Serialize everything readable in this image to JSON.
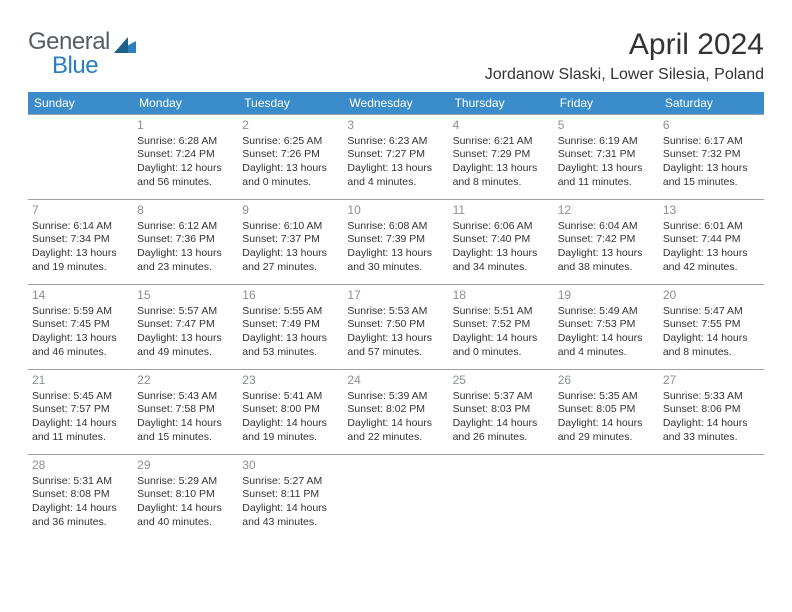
{
  "logo": {
    "text1": "General",
    "text2": "Blue"
  },
  "header": {
    "month_title": "April 2024",
    "location": "Jordanow Slaski, Lower Silesia, Poland"
  },
  "style": {
    "header_bg": "#3b8ccb",
    "header_fg": "#ffffff",
    "body_bg": "#ffffff",
    "border_color": "#9aa0a6",
    "daynum_color": "#8a8f96",
    "text_color": "#333333",
    "logo_gray": "#555c66",
    "logo_blue": "#2a7fbf",
    "month_fontsize": 30,
    "location_fontsize": 16,
    "th_fontsize": 12,
    "cell_fontsize": 10.5
  },
  "day_headers": [
    "Sunday",
    "Monday",
    "Tuesday",
    "Wednesday",
    "Thursday",
    "Friday",
    "Saturday"
  ],
  "weeks": [
    [
      {
        "num": "",
        "lines": []
      },
      {
        "num": "1",
        "lines": [
          "Sunrise: 6:28 AM",
          "Sunset: 7:24 PM",
          "Daylight: 12 hours",
          "and 56 minutes."
        ]
      },
      {
        "num": "2",
        "lines": [
          "Sunrise: 6:25 AM",
          "Sunset: 7:26 PM",
          "Daylight: 13 hours",
          "and 0 minutes."
        ]
      },
      {
        "num": "3",
        "lines": [
          "Sunrise: 6:23 AM",
          "Sunset: 7:27 PM",
          "Daylight: 13 hours",
          "and 4 minutes."
        ]
      },
      {
        "num": "4",
        "lines": [
          "Sunrise: 6:21 AM",
          "Sunset: 7:29 PM",
          "Daylight: 13 hours",
          "and 8 minutes."
        ]
      },
      {
        "num": "5",
        "lines": [
          "Sunrise: 6:19 AM",
          "Sunset: 7:31 PM",
          "Daylight: 13 hours",
          "and 11 minutes."
        ]
      },
      {
        "num": "6",
        "lines": [
          "Sunrise: 6:17 AM",
          "Sunset: 7:32 PM",
          "Daylight: 13 hours",
          "and 15 minutes."
        ]
      }
    ],
    [
      {
        "num": "7",
        "lines": [
          "Sunrise: 6:14 AM",
          "Sunset: 7:34 PM",
          "Daylight: 13 hours",
          "and 19 minutes."
        ]
      },
      {
        "num": "8",
        "lines": [
          "Sunrise: 6:12 AM",
          "Sunset: 7:36 PM",
          "Daylight: 13 hours",
          "and 23 minutes."
        ]
      },
      {
        "num": "9",
        "lines": [
          "Sunrise: 6:10 AM",
          "Sunset: 7:37 PM",
          "Daylight: 13 hours",
          "and 27 minutes."
        ]
      },
      {
        "num": "10",
        "lines": [
          "Sunrise: 6:08 AM",
          "Sunset: 7:39 PM",
          "Daylight: 13 hours",
          "and 30 minutes."
        ]
      },
      {
        "num": "11",
        "lines": [
          "Sunrise: 6:06 AM",
          "Sunset: 7:40 PM",
          "Daylight: 13 hours",
          "and 34 minutes."
        ]
      },
      {
        "num": "12",
        "lines": [
          "Sunrise: 6:04 AM",
          "Sunset: 7:42 PM",
          "Daylight: 13 hours",
          "and 38 minutes."
        ]
      },
      {
        "num": "13",
        "lines": [
          "Sunrise: 6:01 AM",
          "Sunset: 7:44 PM",
          "Daylight: 13 hours",
          "and 42 minutes."
        ]
      }
    ],
    [
      {
        "num": "14",
        "lines": [
          "Sunrise: 5:59 AM",
          "Sunset: 7:45 PM",
          "Daylight: 13 hours",
          "and 46 minutes."
        ]
      },
      {
        "num": "15",
        "lines": [
          "Sunrise: 5:57 AM",
          "Sunset: 7:47 PM",
          "Daylight: 13 hours",
          "and 49 minutes."
        ]
      },
      {
        "num": "16",
        "lines": [
          "Sunrise: 5:55 AM",
          "Sunset: 7:49 PM",
          "Daylight: 13 hours",
          "and 53 minutes."
        ]
      },
      {
        "num": "17",
        "lines": [
          "Sunrise: 5:53 AM",
          "Sunset: 7:50 PM",
          "Daylight: 13 hours",
          "and 57 minutes."
        ]
      },
      {
        "num": "18",
        "lines": [
          "Sunrise: 5:51 AM",
          "Sunset: 7:52 PM",
          "Daylight: 14 hours",
          "and 0 minutes."
        ]
      },
      {
        "num": "19",
        "lines": [
          "Sunrise: 5:49 AM",
          "Sunset: 7:53 PM",
          "Daylight: 14 hours",
          "and 4 minutes."
        ]
      },
      {
        "num": "20",
        "lines": [
          "Sunrise: 5:47 AM",
          "Sunset: 7:55 PM",
          "Daylight: 14 hours",
          "and 8 minutes."
        ]
      }
    ],
    [
      {
        "num": "21",
        "lines": [
          "Sunrise: 5:45 AM",
          "Sunset: 7:57 PM",
          "Daylight: 14 hours",
          "and 11 minutes."
        ]
      },
      {
        "num": "22",
        "lines": [
          "Sunrise: 5:43 AM",
          "Sunset: 7:58 PM",
          "Daylight: 14 hours",
          "and 15 minutes."
        ]
      },
      {
        "num": "23",
        "lines": [
          "Sunrise: 5:41 AM",
          "Sunset: 8:00 PM",
          "Daylight: 14 hours",
          "and 19 minutes."
        ]
      },
      {
        "num": "24",
        "lines": [
          "Sunrise: 5:39 AM",
          "Sunset: 8:02 PM",
          "Daylight: 14 hours",
          "and 22 minutes."
        ]
      },
      {
        "num": "25",
        "lines": [
          "Sunrise: 5:37 AM",
          "Sunset: 8:03 PM",
          "Daylight: 14 hours",
          "and 26 minutes."
        ]
      },
      {
        "num": "26",
        "lines": [
          "Sunrise: 5:35 AM",
          "Sunset: 8:05 PM",
          "Daylight: 14 hours",
          "and 29 minutes."
        ]
      },
      {
        "num": "27",
        "lines": [
          "Sunrise: 5:33 AM",
          "Sunset: 8:06 PM",
          "Daylight: 14 hours",
          "and 33 minutes."
        ]
      }
    ],
    [
      {
        "num": "28",
        "lines": [
          "Sunrise: 5:31 AM",
          "Sunset: 8:08 PM",
          "Daylight: 14 hours",
          "and 36 minutes."
        ]
      },
      {
        "num": "29",
        "lines": [
          "Sunrise: 5:29 AM",
          "Sunset: 8:10 PM",
          "Daylight: 14 hours",
          "and 40 minutes."
        ]
      },
      {
        "num": "30",
        "lines": [
          "Sunrise: 5:27 AM",
          "Sunset: 8:11 PM",
          "Daylight: 14 hours",
          "and 43 minutes."
        ]
      },
      {
        "num": "",
        "lines": []
      },
      {
        "num": "",
        "lines": []
      },
      {
        "num": "",
        "lines": []
      },
      {
        "num": "",
        "lines": []
      }
    ]
  ]
}
